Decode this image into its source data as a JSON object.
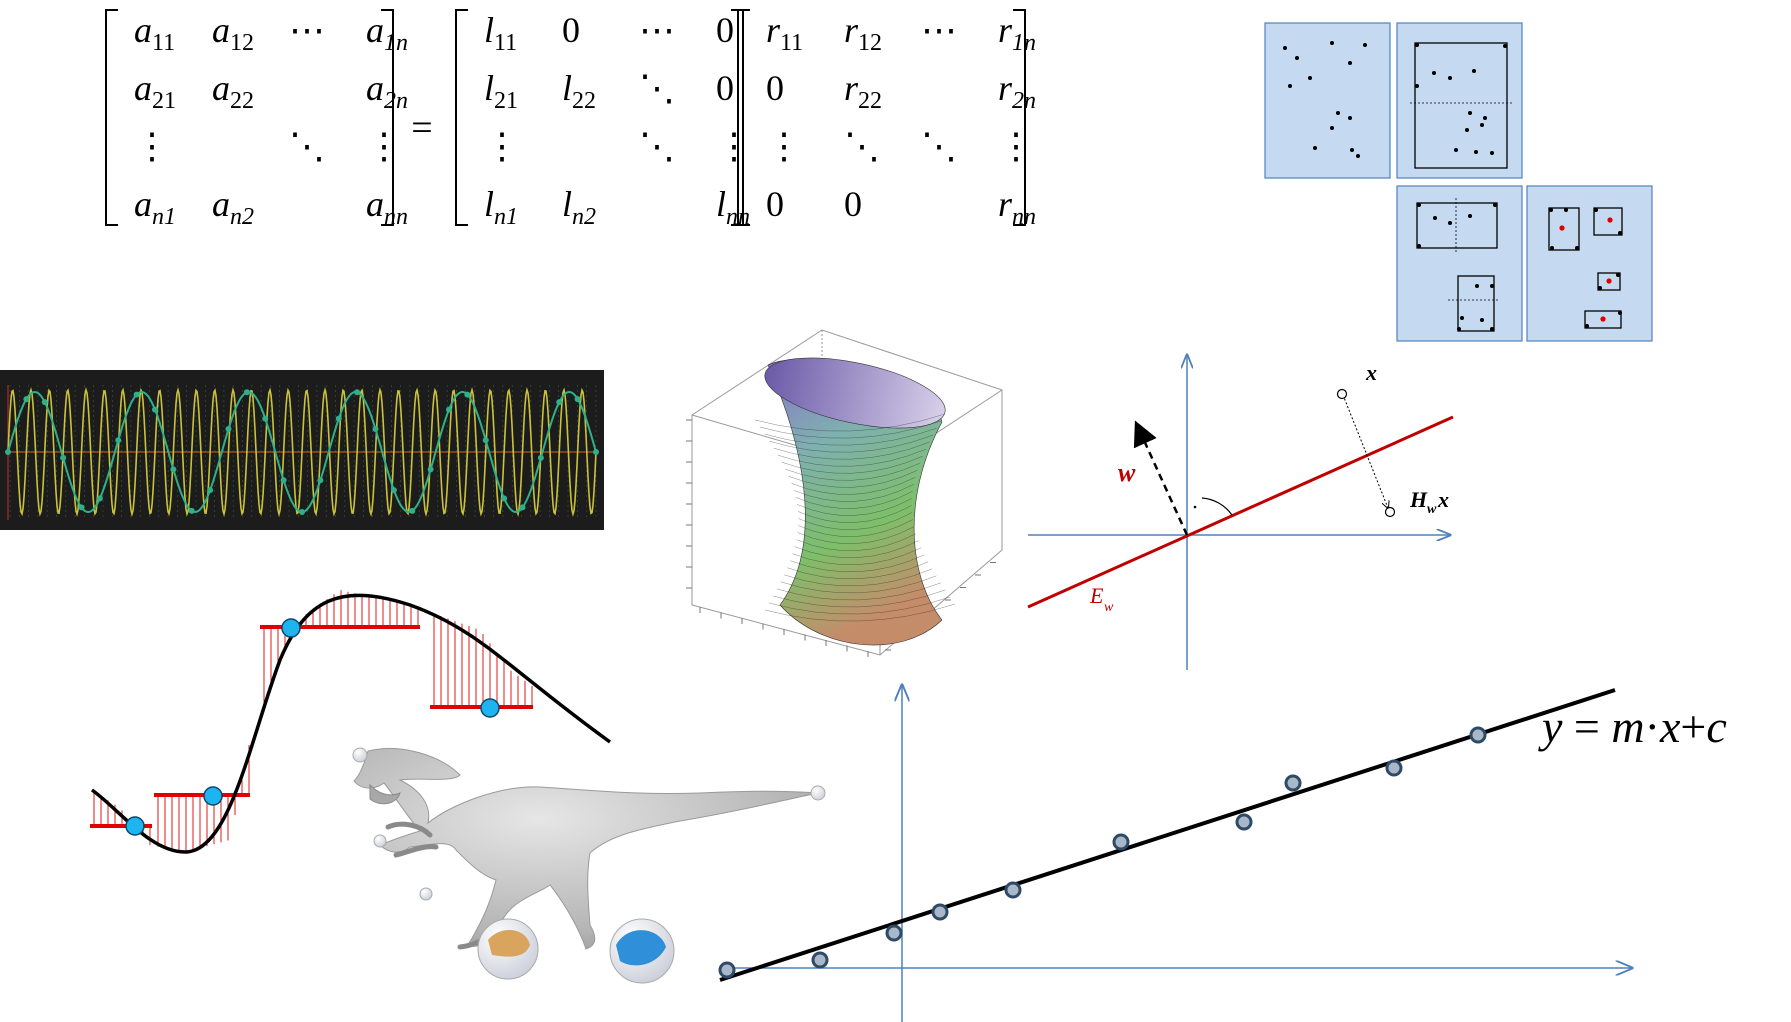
{
  "matrix_equation": {
    "A": [
      [
        "a",
        "11"
      ],
      [
        "a",
        "12"
      ],
      [
        "⋯",
        ""
      ],
      [
        "a",
        "1n"
      ],
      [
        "a",
        "21"
      ],
      [
        "a",
        "22"
      ],
      [
        "",
        ""
      ],
      [
        "a",
        "2n"
      ],
      [
        "⋮",
        ""
      ],
      [
        "",
        ""
      ],
      [
        "⋱",
        ""
      ],
      [
        "⋮",
        ""
      ],
      [
        "a",
        "n1"
      ],
      [
        "a",
        "n2"
      ],
      [
        "",
        ""
      ],
      [
        "a",
        "nn"
      ]
    ],
    "equals": "=",
    "L": [
      [
        "l",
        "11"
      ],
      [
        "0",
        ""
      ],
      [
        "⋯",
        ""
      ],
      [
        "0",
        ""
      ],
      [
        "l",
        "21"
      ],
      [
        "l",
        "22"
      ],
      [
        "⋱",
        ""
      ],
      [
        "0",
        ""
      ],
      [
        "⋮",
        ""
      ],
      [
        "",
        ""
      ],
      [
        "⋱",
        ""
      ],
      [
        "⋮",
        ""
      ],
      [
        "l",
        "n1"
      ],
      [
        "l",
        "n2"
      ],
      [
        "",
        ""
      ],
      [
        "l",
        "nn"
      ]
    ],
    "R": [
      [
        "r",
        "11"
      ],
      [
        "r",
        "12"
      ],
      [
        "⋯",
        ""
      ],
      [
        "r",
        "1n"
      ],
      [
        "0",
        ""
      ],
      [
        "r",
        "22"
      ],
      [
        "",
        ""
      ],
      [
        "r",
        "2n"
      ],
      [
        "⋮",
        ""
      ],
      [
        "⋱",
        ""
      ],
      [
        "⋱",
        ""
      ],
      [
        "⋮",
        ""
      ],
      [
        "0",
        ""
      ],
      [
        "0",
        ""
      ],
      [
        "",
        ""
      ],
      [
        "r",
        "nn"
      ]
    ]
  },
  "tree_subdivision": {
    "panel_color": "#c5d9f1",
    "border_color": "#4f81bd"
  },
  "signal_plot": {
    "background": "#1c1c1c",
    "fast_wave_color": "#c9c23a",
    "slow_wave_color": "#2fb08a",
    "axis_color": "#d2691e"
  },
  "hyperboloid_surface": {
    "colors": [
      "#8a6fc9",
      "#7fb0b0",
      "#7dbf6a",
      "#c58c6a"
    ]
  },
  "reflection_diagram": {
    "labels": {
      "x": "x",
      "w": "w",
      "hwx": "H",
      "hwx_sub": "w",
      "hwx_tail": "x",
      "ew": "E",
      "ew_sub": "w"
    },
    "line_color": "#c00000",
    "axis_color": "#4f81bd"
  },
  "interpolation_plot": {
    "curve_color": "#000000",
    "step_color": "#e00000",
    "point_color": "#1eb4ef"
  },
  "dinosaur": {
    "body_color": "#b5b5b5"
  },
  "regression_plot": {
    "equation": {
      "y": "y",
      "eq": " = ",
      "m": "m",
      "dot": "·",
      "x": "x",
      "plus": "+",
      "c": "c"
    },
    "line_color": "#000000",
    "point_color": "#4f81bd",
    "axis_color": "#4f81bd"
  }
}
